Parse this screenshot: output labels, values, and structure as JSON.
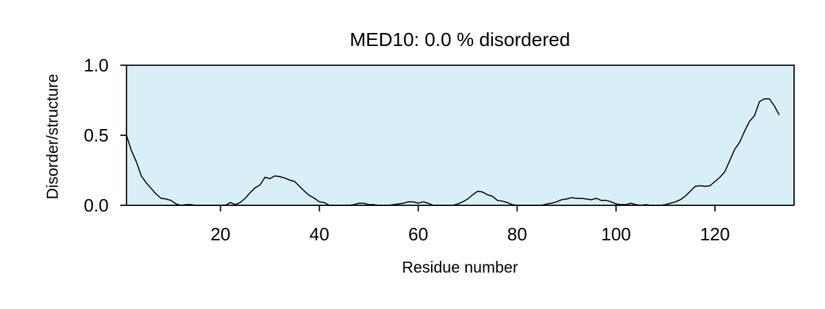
{
  "chart_data": {
    "type": "line",
    "title": "MED10: 0.0 % disordered",
    "xlabel": "Residue number",
    "ylabel": "Disorder/structure",
    "xlim": [
      1,
      136
    ],
    "ylim": [
      0,
      1
    ],
    "x_ticks": [
      20,
      40,
      60,
      80,
      100,
      120
    ],
    "y_ticks": [
      0,
      0.5,
      1
    ],
    "y_tick_labels": [
      "0.0",
      "0.5",
      "1.0"
    ],
    "background_color": "#d9eff8",
    "line_color": "#000000",
    "grid": false,
    "series": [
      {
        "points": [
          [
            1,
            0.5
          ],
          [
            2,
            0.39
          ],
          [
            3,
            0.31
          ],
          [
            4,
            0.21
          ],
          [
            5,
            0.16
          ],
          [
            6,
            0.12
          ],
          [
            7,
            0.08
          ],
          [
            8,
            0.05
          ],
          [
            9,
            0.045
          ],
          [
            10,
            0.035
          ],
          [
            11,
            0.01
          ],
          [
            12,
            0.0
          ],
          [
            13,
            0.005
          ],
          [
            14,
            0.005
          ],
          [
            15,
            0.0
          ],
          [
            16,
            0.0
          ],
          [
            17,
            0.0
          ],
          [
            18,
            0.0
          ],
          [
            19,
            0.0
          ],
          [
            20,
            0.0
          ],
          [
            21,
            0.0
          ],
          [
            22,
            0.02
          ],
          [
            23,
            0.005
          ],
          [
            24,
            0.02
          ],
          [
            25,
            0.05
          ],
          [
            26,
            0.09
          ],
          [
            27,
            0.125
          ],
          [
            28,
            0.145
          ],
          [
            29,
            0.2
          ],
          [
            30,
            0.19
          ],
          [
            31,
            0.21
          ],
          [
            32,
            0.205
          ],
          [
            33,
            0.195
          ],
          [
            34,
            0.18
          ],
          [
            35,
            0.17
          ],
          [
            36,
            0.135
          ],
          [
            37,
            0.1
          ],
          [
            38,
            0.07
          ],
          [
            39,
            0.05
          ],
          [
            40,
            0.025
          ],
          [
            41,
            0.02
          ],
          [
            42,
            0.0
          ],
          [
            43,
            0.0
          ],
          [
            44,
            0.0
          ],
          [
            45,
            0.0
          ],
          [
            46,
            0.0
          ],
          [
            47,
            0.005
          ],
          [
            48,
            0.015
          ],
          [
            49,
            0.015
          ],
          [
            50,
            0.005
          ],
          [
            51,
            0.005
          ],
          [
            52,
            0.0
          ],
          [
            53,
            0.0
          ],
          [
            54,
            0.0
          ],
          [
            55,
            0.005
          ],
          [
            56,
            0.01
          ],
          [
            57,
            0.015
          ],
          [
            58,
            0.025
          ],
          [
            59,
            0.025
          ],
          [
            60,
            0.015
          ],
          [
            61,
            0.025
          ],
          [
            62,
            0.015
          ],
          [
            63,
            0.0
          ],
          [
            64,
            0.0
          ],
          [
            65,
            0.0
          ],
          [
            66,
            0.0
          ],
          [
            67,
            0.0
          ],
          [
            68,
            0.01
          ],
          [
            69,
            0.025
          ],
          [
            70,
            0.045
          ],
          [
            71,
            0.075
          ],
          [
            72,
            0.1
          ],
          [
            73,
            0.095
          ],
          [
            74,
            0.075
          ],
          [
            75,
            0.065
          ],
          [
            76,
            0.035
          ],
          [
            77,
            0.03
          ],
          [
            78,
            0.02
          ],
          [
            79,
            0.005
          ],
          [
            80,
            0.0
          ],
          [
            81,
            0.0
          ],
          [
            82,
            0.0
          ],
          [
            83,
            0.0
          ],
          [
            84,
            0.0
          ],
          [
            85,
            0.0
          ],
          [
            86,
            0.01
          ],
          [
            87,
            0.015
          ],
          [
            88,
            0.025
          ],
          [
            89,
            0.04
          ],
          [
            90,
            0.045
          ],
          [
            91,
            0.055
          ],
          [
            92,
            0.05
          ],
          [
            93,
            0.05
          ],
          [
            94,
            0.045
          ],
          [
            95,
            0.04
          ],
          [
            96,
            0.05
          ],
          [
            97,
            0.035
          ],
          [
            98,
            0.035
          ],
          [
            99,
            0.025
          ],
          [
            100,
            0.01
          ],
          [
            101,
            0.005
          ],
          [
            102,
            0.005
          ],
          [
            103,
            0.015
          ],
          [
            104,
            0.005
          ],
          [
            105,
            0.0
          ],
          [
            106,
            0.005
          ],
          [
            107,
            0.0
          ],
          [
            108,
            0.0
          ],
          [
            109,
            0.0
          ],
          [
            110,
            0.005
          ],
          [
            111,
            0.015
          ],
          [
            112,
            0.025
          ],
          [
            113,
            0.04
          ],
          [
            114,
            0.065
          ],
          [
            115,
            0.1
          ],
          [
            116,
            0.135
          ],
          [
            117,
            0.14
          ],
          [
            118,
            0.135
          ],
          [
            119,
            0.14
          ],
          [
            120,
            0.17
          ],
          [
            121,
            0.2
          ],
          [
            122,
            0.24
          ],
          [
            123,
            0.32
          ],
          [
            124,
            0.4
          ],
          [
            125,
            0.45
          ],
          [
            126,
            0.53
          ],
          [
            127,
            0.6
          ],
          [
            128,
            0.64
          ],
          [
            129,
            0.74
          ],
          [
            130,
            0.76
          ],
          [
            131,
            0.76
          ],
          [
            132,
            0.71
          ],
          [
            133,
            0.645
          ]
        ]
      }
    ]
  }
}
